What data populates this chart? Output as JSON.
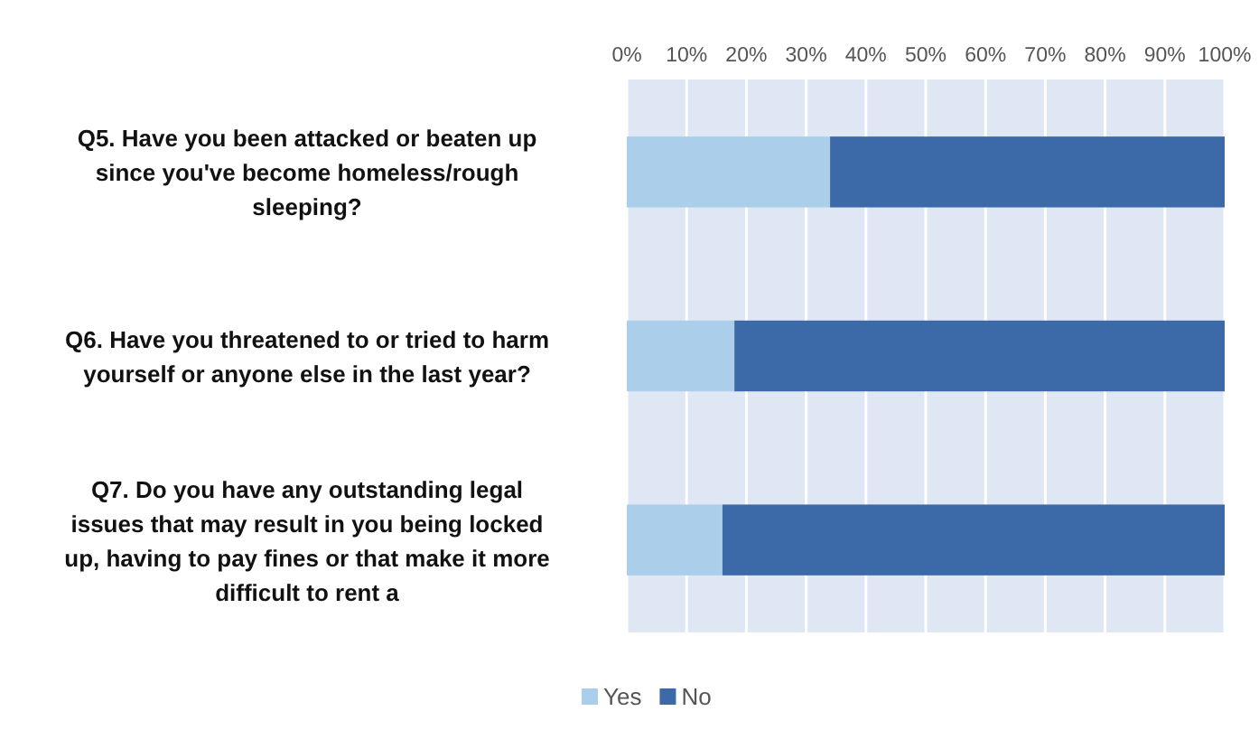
{
  "chart_data": {
    "type": "bar",
    "orientation": "horizontal",
    "stacked": true,
    "categories": [
      "Q5. Have you been attacked or beaten up since you've become homeless/rough sleeping?",
      "Q6. Have you threatened to or tried to harm yourself or anyone else in the last year?",
      "Q7. Do you have any outstanding legal issues that may result in you being locked up, having to pay fines or that make it more difficult to rent a"
    ],
    "series": [
      {
        "name": "Yes",
        "color": "#abcfea",
        "values": [
          34,
          18,
          16
        ]
      },
      {
        "name": "No",
        "color": "#3c6aa8",
        "values": [
          66,
          82,
          84
        ]
      }
    ],
    "xlim": [
      0,
      100
    ],
    "xticks": [
      {
        "value": 0,
        "label": "0%"
      },
      {
        "value": 10,
        "label": "10%"
      },
      {
        "value": 20,
        "label": "20%"
      },
      {
        "value": 30,
        "label": "30%"
      },
      {
        "value": 40,
        "label": "40%"
      },
      {
        "value": 50,
        "label": "50%"
      },
      {
        "value": 60,
        "label": "60%"
      },
      {
        "value": 70,
        "label": "70%"
      },
      {
        "value": 80,
        "label": "80%"
      },
      {
        "value": 90,
        "label": "90%"
      },
      {
        "value": 100,
        "label": "100%"
      }
    ],
    "grid": "x",
    "legend": "bottom"
  }
}
